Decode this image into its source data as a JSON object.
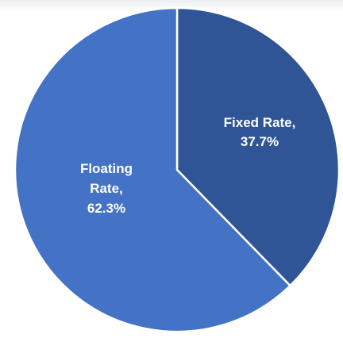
{
  "chart_data": {
    "type": "pie",
    "title": "",
    "legend": "none",
    "start_angle_deg": 0,
    "direction": "clockwise",
    "slices": [
      {
        "name": "Fixed Rate",
        "value": 37.7,
        "color": "#2f5597",
        "label_lines": [
          "Fixed Rate,",
          "37.7%"
        ]
      },
      {
        "name": "Floating Rate",
        "value": 62.3,
        "color": "#4472c4",
        "label_lines": [
          "Floating",
          "Rate,",
          "62.3%"
        ]
      }
    ],
    "border_color": "#ffffff"
  }
}
